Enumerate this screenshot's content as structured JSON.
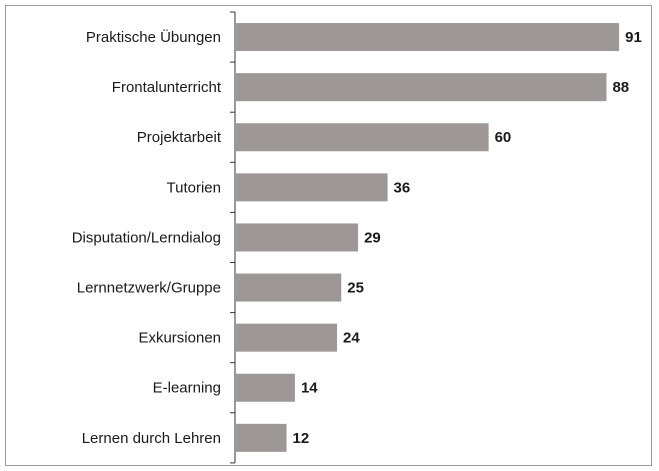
{
  "chart_data": {
    "type": "bar",
    "orientation": "horizontal",
    "categories": [
      "Praktische Übungen",
      "Frontalunterricht",
      "Projektarbeit",
      "Tutorien",
      "Disputation/Lerndialog",
      "Lernnetzwerk/Gruppe",
      "Exkursionen",
      "E-learning",
      "Lernen durch Lehren"
    ],
    "values": [
      91,
      88,
      60,
      36,
      29,
      25,
      24,
      14,
      12
    ],
    "color": "#9d9795"
  }
}
